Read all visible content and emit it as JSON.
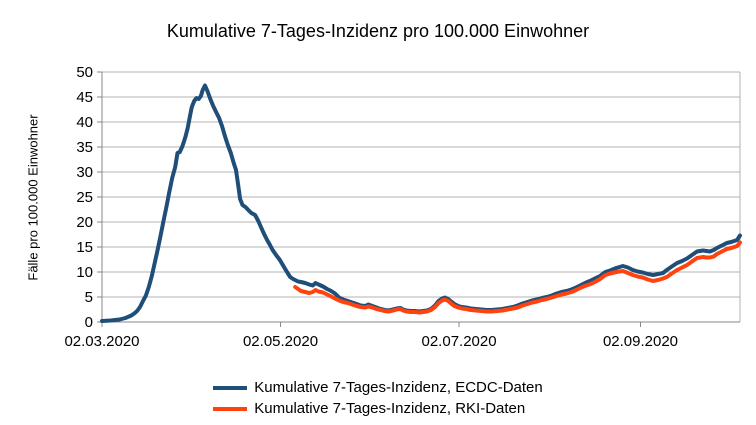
{
  "title": "Kumulative 7-Tages-Inzidenz pro 100.000 Einwohner",
  "colors": {
    "ecdc_blue": "#1f4e79",
    "rki_orange": "#ff420e",
    "gridline": "#b3b3b3",
    "axis": "#878787",
    "text": "#000000",
    "background": "#ffffff"
  },
  "legend": {
    "items": [
      {
        "label": "Kumulative 7-Tages-Inzidenz, ECDC-Daten",
        "color": "#1f4e79"
      },
      {
        "label": "Kumulative 7-Tages-Inzidenz, RKI-Daten",
        "color": "#ff420e"
      }
    ]
  },
  "chart_data": {
    "type": "line",
    "title": "Kumulative 7-Tages-Inzidenz pro 100.000 Einwohner",
    "xlabel": "",
    "ylabel": "Fälle pro 100.000 Einwohner",
    "ylim": [
      0,
      50
    ],
    "ytick_values": [
      0,
      5,
      10,
      15,
      20,
      25,
      30,
      35,
      40,
      45,
      50
    ],
    "x_unit": "days since 02.03.2020",
    "x_range_days": [
      0,
      218
    ],
    "xticks": [
      {
        "day": 0,
        "label": "02.03.2020"
      },
      {
        "day": 61,
        "label": "02.05.2020"
      },
      {
        "day": 122,
        "label": "02.07.2020"
      },
      {
        "day": 184,
        "label": "02.09.2020"
      }
    ],
    "grid": "horizontal",
    "legend_position": "bottom",
    "series": [
      {
        "name": "Kumulative 7-Tages-Inzidenz, ECDC-Daten",
        "color": "#1f4e79",
        "points": [
          [
            0,
            0.2
          ],
          [
            3,
            0.3
          ],
          [
            6,
            0.5
          ],
          [
            8,
            0.8
          ],
          [
            10,
            1.3
          ],
          [
            11,
            1.7
          ],
          [
            12,
            2.2
          ],
          [
            13,
            3.0
          ],
          [
            14,
            4.2
          ],
          [
            15,
            5.3
          ],
          [
            16,
            7.0
          ],
          [
            17,
            9.2
          ],
          [
            18,
            11.8
          ],
          [
            19,
            14.4
          ],
          [
            20,
            17.2
          ],
          [
            21,
            20.2
          ],
          [
            22,
            23.0
          ],
          [
            23,
            26.0
          ],
          [
            24,
            28.8
          ],
          [
            25,
            31.0
          ],
          [
            25.8,
            33.8
          ],
          [
            26.6,
            34.0
          ],
          [
            27.5,
            35.2
          ],
          [
            28.5,
            37.0
          ],
          [
            29.3,
            38.8
          ],
          [
            30,
            41.0
          ],
          [
            30.7,
            43.0
          ],
          [
            31.5,
            44.2
          ],
          [
            32.3,
            44.8
          ],
          [
            33,
            44.6
          ],
          [
            33.8,
            45.2
          ],
          [
            34.4,
            46.4
          ],
          [
            35.2,
            47.3
          ],
          [
            36,
            46.2
          ],
          [
            37,
            44.6
          ],
          [
            38,
            43.2
          ],
          [
            39,
            42.0
          ],
          [
            40,
            40.8
          ],
          [
            41,
            39.2
          ],
          [
            42,
            37.2
          ],
          [
            43,
            35.4
          ],
          [
            44,
            33.8
          ],
          [
            45,
            31.8
          ],
          [
            45.8,
            30.4
          ],
          [
            46.5,
            27.5
          ],
          [
            47.2,
            24.6
          ],
          [
            48,
            23.4
          ],
          [
            49,
            23.0
          ],
          [
            50,
            22.4
          ],
          [
            51,
            21.8
          ],
          [
            52.3,
            21.4
          ],
          [
            53.4,
            20.2
          ],
          [
            54.3,
            19.0
          ],
          [
            55.4,
            17.6
          ],
          [
            56.4,
            16.4
          ],
          [
            57.4,
            15.4
          ],
          [
            58.3,
            14.4
          ],
          [
            59.5,
            13.4
          ],
          [
            60.8,
            12.4
          ],
          [
            62,
            11.2
          ],
          [
            63.2,
            10.0
          ],
          [
            64.3,
            9.0
          ],
          [
            65.3,
            8.6
          ],
          [
            67,
            8.1
          ],
          [
            68,
            8.0
          ],
          [
            69.4,
            7.8
          ],
          [
            70.8,
            7.5
          ],
          [
            72,
            7.3
          ],
          [
            73,
            7.8
          ],
          [
            74,
            7.5
          ],
          [
            75.5,
            7.1
          ],
          [
            76.9,
            6.6
          ],
          [
            78.3,
            6.2
          ],
          [
            79.6,
            5.7
          ],
          [
            81,
            4.9
          ],
          [
            82.4,
            4.5
          ],
          [
            84,
            4.2
          ],
          [
            85.5,
            3.9
          ],
          [
            87,
            3.6
          ],
          [
            88.4,
            3.3
          ],
          [
            90,
            3.2
          ],
          [
            91,
            3.5
          ],
          [
            92.4,
            3.2
          ],
          [
            93.8,
            2.9
          ],
          [
            95.2,
            2.6
          ],
          [
            96.6,
            2.4
          ],
          [
            98,
            2.3
          ],
          [
            99.4,
            2.5
          ],
          [
            100.7,
            2.7
          ],
          [
            102,
            2.8
          ],
          [
            102.9,
            2.5
          ],
          [
            104,
            2.3
          ],
          [
            105.5,
            2.2
          ],
          [
            107,
            2.2
          ],
          [
            108.3,
            2.1
          ],
          [
            109.7,
            2.2
          ],
          [
            111,
            2.3
          ],
          [
            112.4,
            2.6
          ],
          [
            113.8,
            3.3
          ],
          [
            115,
            4.2
          ],
          [
            116.2,
            4.7
          ],
          [
            117.2,
            4.9
          ],
          [
            118.3,
            4.6
          ],
          [
            119.3,
            4.1
          ],
          [
            120.4,
            3.6
          ],
          [
            121.7,
            3.2
          ],
          [
            123,
            3.0
          ],
          [
            124.4,
            2.9
          ],
          [
            126,
            2.7
          ],
          [
            127.8,
            2.6
          ],
          [
            129.6,
            2.5
          ],
          [
            131.4,
            2.4
          ],
          [
            133.2,
            2.4
          ],
          [
            135,
            2.5
          ],
          [
            136.8,
            2.6
          ],
          [
            138.6,
            2.8
          ],
          [
            140.4,
            3.0
          ],
          [
            142,
            3.3
          ],
          [
            143.7,
            3.7
          ],
          [
            145.4,
            4.0
          ],
          [
            147,
            4.3
          ],
          [
            148.6,
            4.5
          ],
          [
            150.3,
            4.8
          ],
          [
            152,
            5.0
          ],
          [
            153.7,
            5.3
          ],
          [
            155.4,
            5.7
          ],
          [
            157,
            6.0
          ],
          [
            158.7,
            6.2
          ],
          [
            160.4,
            6.5
          ],
          [
            162,
            6.9
          ],
          [
            163.7,
            7.4
          ],
          [
            165.4,
            7.9
          ],
          [
            166.7,
            8.2
          ],
          [
            168.4,
            8.7
          ],
          [
            170.2,
            9.2
          ],
          [
            172,
            10.0
          ],
          [
            173.6,
            10.3
          ],
          [
            175.7,
            10.8
          ],
          [
            178,
            11.2
          ],
          [
            179.7,
            10.9
          ],
          [
            181.4,
            10.4
          ],
          [
            183,
            10.1
          ],
          [
            184.8,
            9.9
          ],
          [
            186.5,
            9.6
          ],
          [
            188.3,
            9.4
          ],
          [
            190,
            9.6
          ],
          [
            191.7,
            9.8
          ],
          [
            193,
            10.4
          ],
          [
            194.7,
            11.1
          ],
          [
            196.5,
            11.8
          ],
          [
            198.2,
            12.2
          ],
          [
            199.9,
            12.7
          ],
          [
            201.6,
            13.4
          ],
          [
            203.3,
            14.1
          ],
          [
            205.4,
            14.3
          ],
          [
            206.5,
            14.2
          ],
          [
            207.7,
            14.1
          ],
          [
            209,
            14.4
          ],
          [
            210.1,
            14.8
          ],
          [
            211.8,
            15.3
          ],
          [
            213.5,
            15.8
          ],
          [
            215,
            16.0
          ],
          [
            217,
            16.4
          ],
          [
            218,
            17.3
          ]
        ]
      },
      {
        "name": "Kumulative 7-Tages-Inzidenz, RKI-Daten",
        "color": "#ff420e",
        "points": [
          [
            66,
            7.0
          ],
          [
            67,
            6.6
          ],
          [
            68,
            6.2
          ],
          [
            69.4,
            6.0
          ],
          [
            70.8,
            5.8
          ],
          [
            72,
            6.0
          ],
          [
            73,
            6.4
          ],
          [
            74,
            6.1
          ],
          [
            75.5,
            5.9
          ],
          [
            76.9,
            5.5
          ],
          [
            78.3,
            5.1
          ],
          [
            79.6,
            4.7
          ],
          [
            81,
            4.3
          ],
          [
            82.4,
            4.0
          ],
          [
            84,
            3.8
          ],
          [
            85.5,
            3.5
          ],
          [
            87,
            3.2
          ],
          [
            88.4,
            3.0
          ],
          [
            90,
            2.9
          ],
          [
            91,
            3.1
          ],
          [
            92.4,
            2.9
          ],
          [
            93.8,
            2.6
          ],
          [
            95.2,
            2.4
          ],
          [
            96.6,
            2.2
          ],
          [
            98,
            2.1
          ],
          [
            99.4,
            2.3
          ],
          [
            100.7,
            2.5
          ],
          [
            102,
            2.6
          ],
          [
            102.9,
            2.3
          ],
          [
            104,
            2.1
          ],
          [
            105.5,
            2.0
          ],
          [
            107,
            2.0
          ],
          [
            108.3,
            1.9
          ],
          [
            109.7,
            2.0
          ],
          [
            111,
            2.1
          ],
          [
            112.4,
            2.4
          ],
          [
            113.8,
            3.0
          ],
          [
            115,
            3.8
          ],
          [
            116.2,
            4.3
          ],
          [
            117.2,
            4.5
          ],
          [
            118.3,
            4.2
          ],
          [
            119.3,
            3.7
          ],
          [
            120.4,
            3.2
          ],
          [
            121.7,
            2.9
          ],
          [
            123,
            2.7
          ],
          [
            124.4,
            2.6
          ],
          [
            126,
            2.4
          ],
          [
            127.8,
            2.3
          ],
          [
            129.6,
            2.2
          ],
          [
            131.4,
            2.1
          ],
          [
            133.2,
            2.1
          ],
          [
            135,
            2.2
          ],
          [
            136.8,
            2.3
          ],
          [
            138.6,
            2.5
          ],
          [
            140.4,
            2.7
          ],
          [
            142,
            2.9
          ],
          [
            143.7,
            3.3
          ],
          [
            145.4,
            3.6
          ],
          [
            147,
            3.9
          ],
          [
            148.6,
            4.1
          ],
          [
            150.3,
            4.4
          ],
          [
            152,
            4.6
          ],
          [
            153.7,
            4.9
          ],
          [
            155.4,
            5.2
          ],
          [
            157,
            5.5
          ],
          [
            158.7,
            5.7
          ],
          [
            160.4,
            6.0
          ],
          [
            162,
            6.4
          ],
          [
            163.7,
            6.9
          ],
          [
            165.4,
            7.3
          ],
          [
            167,
            7.6
          ],
          [
            168.4,
            8.0
          ],
          [
            170.2,
            8.6
          ],
          [
            172,
            9.4
          ],
          [
            173.6,
            9.7
          ],
          [
            175.7,
            10.0
          ],
          [
            178,
            10.2
          ],
          [
            179.7,
            9.8
          ],
          [
            181.4,
            9.4
          ],
          [
            183,
            9.1
          ],
          [
            184.8,
            8.9
          ],
          [
            186.5,
            8.5
          ],
          [
            188.3,
            8.2
          ],
          [
            190,
            8.4
          ],
          [
            191.7,
            8.7
          ],
          [
            193,
            9.0
          ],
          [
            194.7,
            9.7
          ],
          [
            196.5,
            10.4
          ],
          [
            198.2,
            10.9
          ],
          [
            199.9,
            11.4
          ],
          [
            201.6,
            12.1
          ],
          [
            203.3,
            12.8
          ],
          [
            205.4,
            13.0
          ],
          [
            206.5,
            12.9
          ],
          [
            207.7,
            12.9
          ],
          [
            209,
            13.1
          ],
          [
            210.1,
            13.6
          ],
          [
            211.8,
            14.1
          ],
          [
            213.5,
            14.6
          ],
          [
            215,
            14.8
          ],
          [
            217,
            15.2
          ],
          [
            218,
            15.9
          ]
        ]
      }
    ]
  }
}
